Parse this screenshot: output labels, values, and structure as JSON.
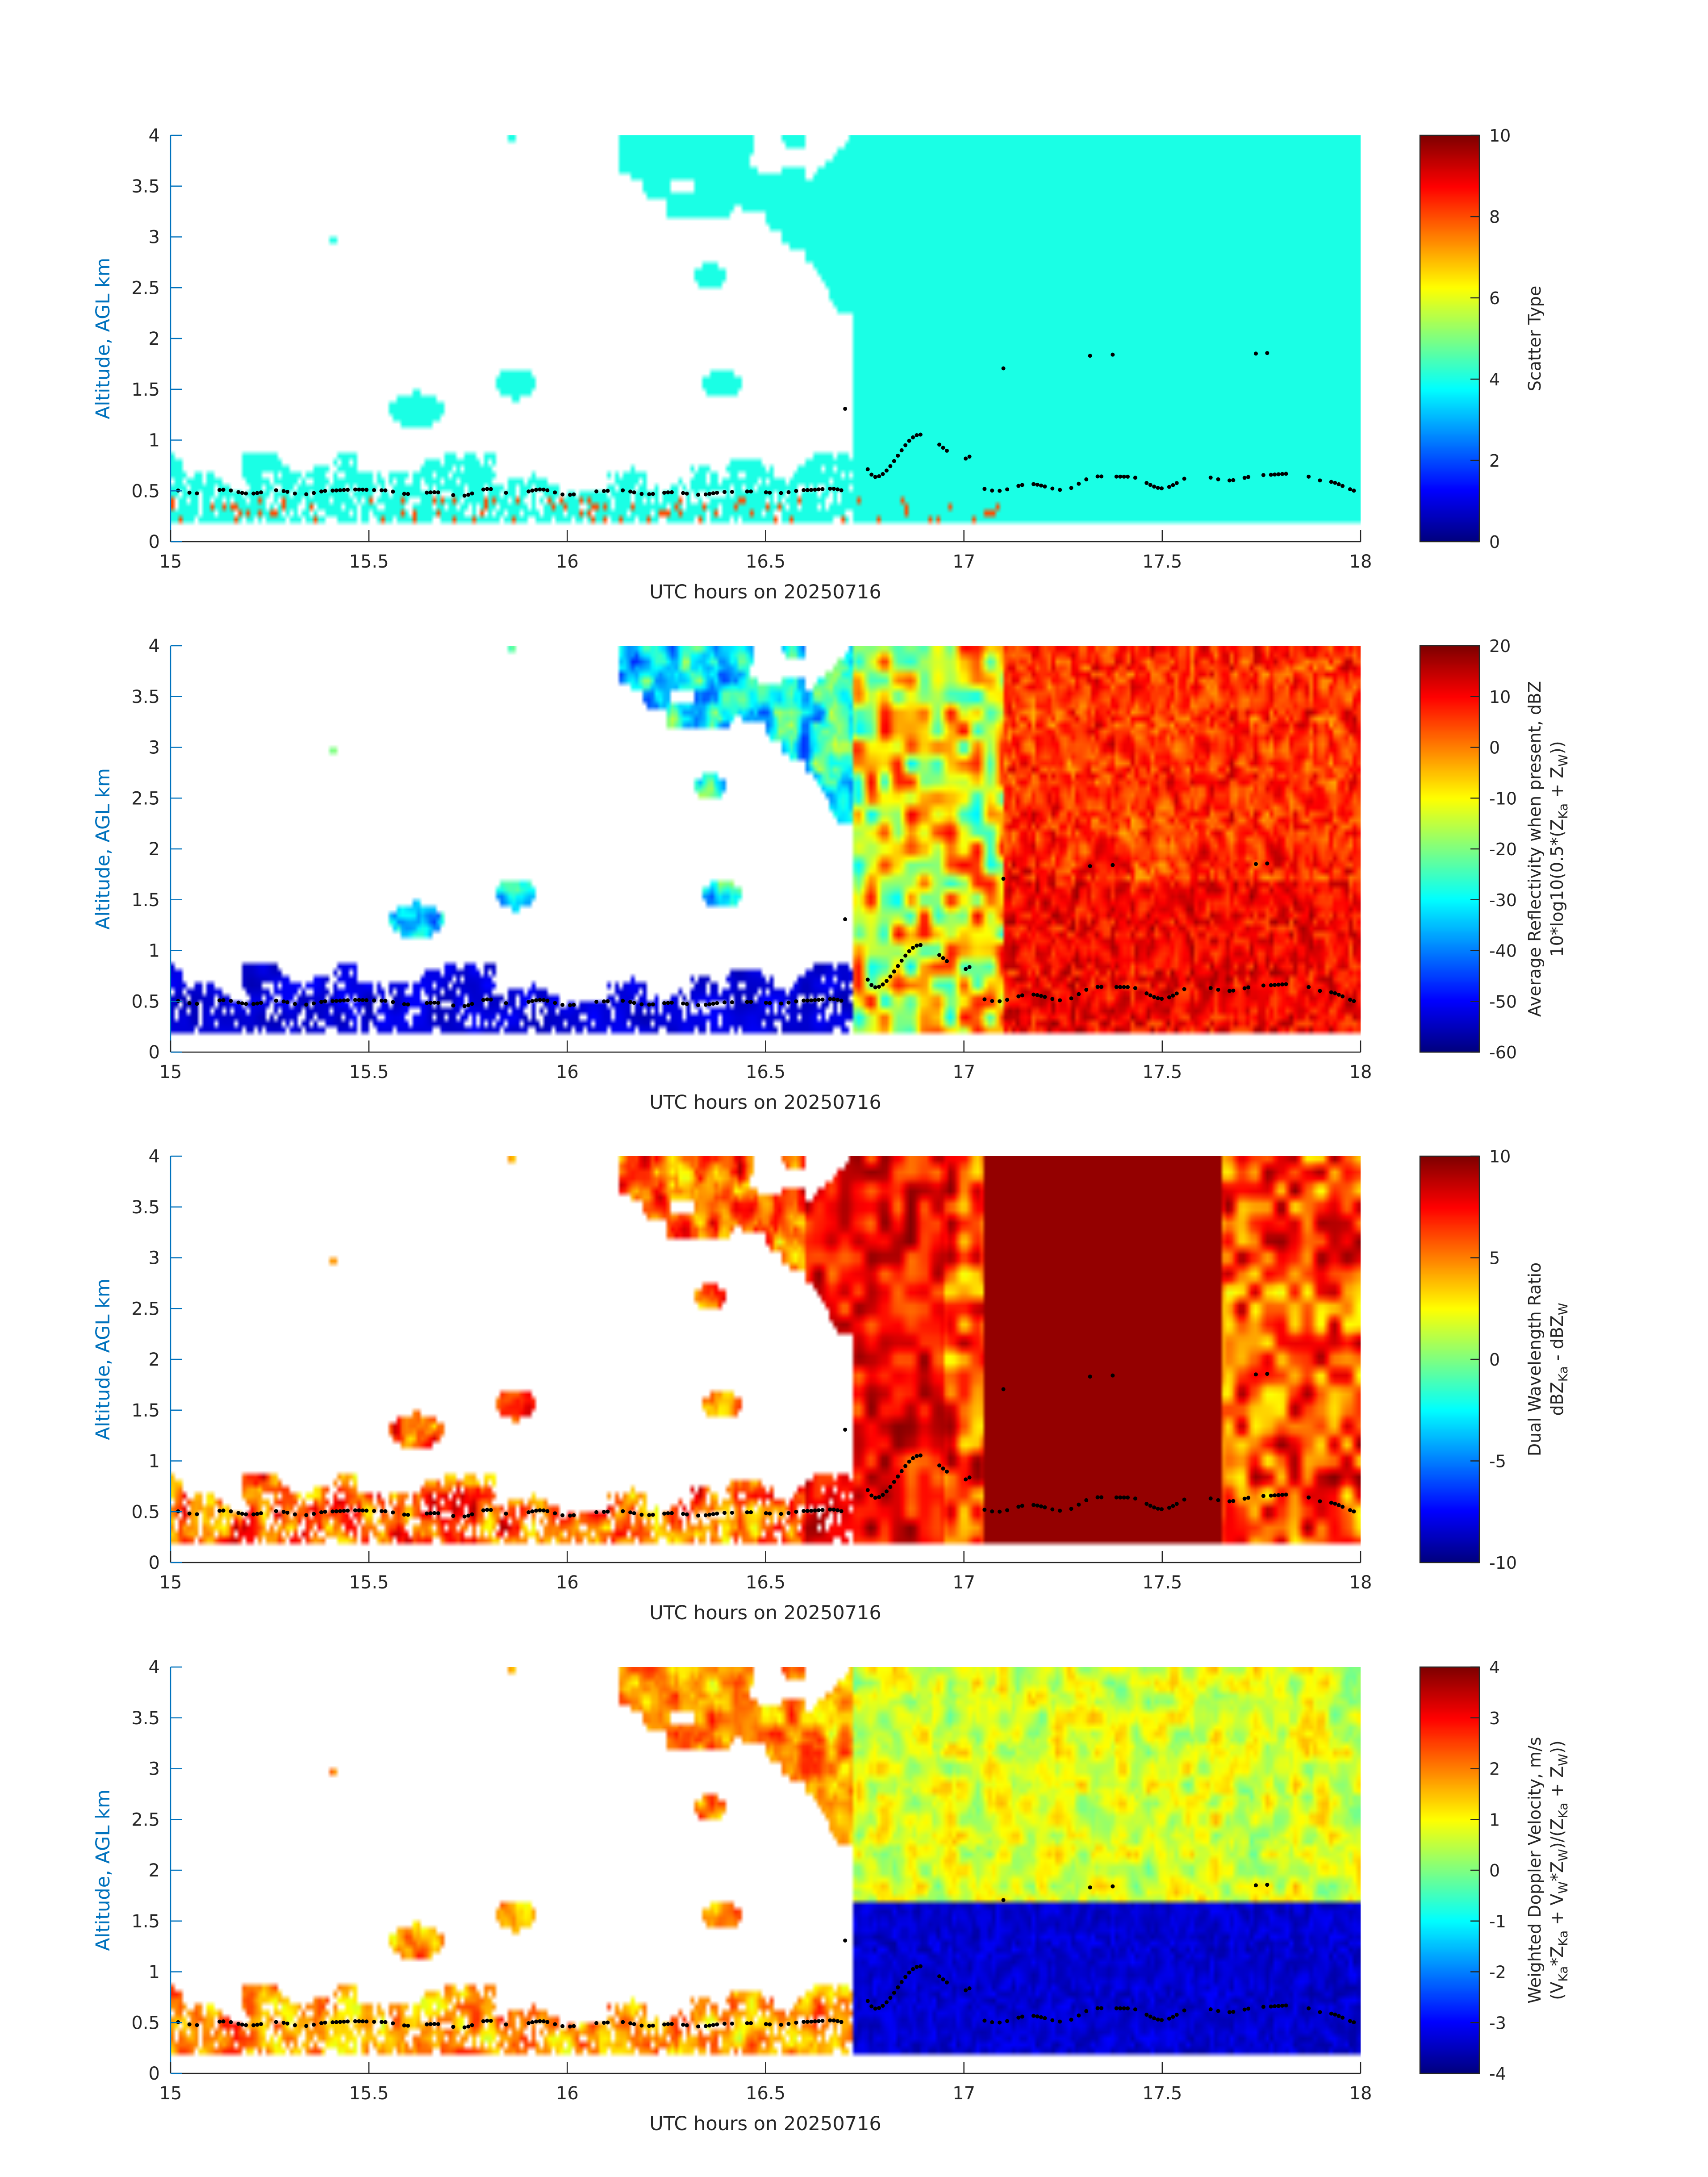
{
  "figure": {
    "background": "#ffffff",
    "axis_color": "#262626",
    "ylabel_color": "#0072BD",
    "colormap": "jet"
  },
  "chart_data": [
    {
      "type": "heatmap",
      "id": "scatter-type",
      "xlabel": "UTC hours on 20250716",
      "ylabel": "Altitude, AGL km",
      "xlim": [
        15,
        18
      ],
      "ylim": [
        0,
        4
      ],
      "xticks": [
        "15",
        "15.5",
        "16",
        "16.5",
        "17",
        "17.5",
        "18"
      ],
      "yticks": [
        "0",
        "0.5",
        "1",
        "1.5",
        "2",
        "2.5",
        "3",
        "3.5",
        "4"
      ],
      "colorbar": {
        "label": "Scatter Type",
        "lim": [
          0,
          10
        ],
        "ticks": [
          "0",
          "2",
          "4",
          "6",
          "8",
          "10"
        ]
      },
      "description_values": {
        "dominant_value": 4,
        "low_level_precip_value": 8
      },
      "overlay": "black dots marking cloud base"
    },
    {
      "type": "heatmap",
      "id": "reflectivity",
      "xlabel": "UTC hours on 20250716",
      "ylabel": "Altitude, AGL km",
      "xlim": [
        15,
        18
      ],
      "ylim": [
        0,
        4
      ],
      "xticks": [
        "15",
        "15.5",
        "16",
        "16.5",
        "17",
        "17.5",
        "18"
      ],
      "yticks": [
        "0",
        "0.5",
        "1",
        "1.5",
        "2",
        "2.5",
        "3",
        "3.5",
        "4"
      ],
      "colorbar": {
        "label_line1": "Average Reflectivity when present, dBZ",
        "label_line2_main": "10*log10(0.5*(Z",
        "sub1": "Ka",
        "mid": " + Z",
        "sub2": "W",
        "end": "))",
        "lim": [
          -60,
          20
        ],
        "ticks": [
          "-60",
          "-50",
          "-40",
          "-30",
          "-20",
          "-10",
          "0",
          "10",
          "20"
        ]
      },
      "overlay": "black dots marking cloud base"
    },
    {
      "type": "heatmap",
      "id": "dwr",
      "xlabel": "UTC hours on 20250716",
      "ylabel": "Altitude, AGL km",
      "xlim": [
        15,
        18
      ],
      "ylim": [
        0,
        4
      ],
      "xticks": [
        "15",
        "15.5",
        "16",
        "16.5",
        "17",
        "17.5",
        "18"
      ],
      "yticks": [
        "0",
        "0.5",
        "1",
        "1.5",
        "2",
        "2.5",
        "3",
        "3.5",
        "4"
      ],
      "colorbar": {
        "label_line1": "Dual Wavelength Ratio",
        "label_line2_a": "dBZ",
        "sub1": "Ka",
        "label_line2_b": " - dBZ",
        "sub2": "W",
        "lim": [
          -10,
          10
        ],
        "ticks": [
          "-10",
          "-5",
          "0",
          "5",
          "10"
        ]
      },
      "overlay": "black dots marking cloud base"
    },
    {
      "type": "heatmap",
      "id": "doppler",
      "xlabel": "UTC hours on 20250716",
      "ylabel": "Altitude, AGL km",
      "xlim": [
        15,
        18
      ],
      "ylim": [
        0,
        4
      ],
      "xticks": [
        "15",
        "15.5",
        "16",
        "16.5",
        "17",
        "17.5",
        "18"
      ],
      "yticks": [
        "0",
        "0.5",
        "1",
        "1.5",
        "2",
        "2.5",
        "3",
        "3.5",
        "4"
      ],
      "colorbar": {
        "label_line1": "Weighted Doppler Velocity, m/s",
        "l2": [
          "(V",
          "Ka",
          "*Z",
          "Ka",
          " + V",
          "W",
          "*Z",
          "W",
          ")/(Z",
          "Ka",
          " + Z",
          "W",
          "))"
        ],
        "lim": [
          -4,
          4
        ],
        "ticks": [
          "-4",
          "-3",
          "-2",
          "-1",
          "0",
          "1",
          "2",
          "3",
          "4"
        ]
      },
      "overlay": "black dots marking cloud base"
    }
  ]
}
